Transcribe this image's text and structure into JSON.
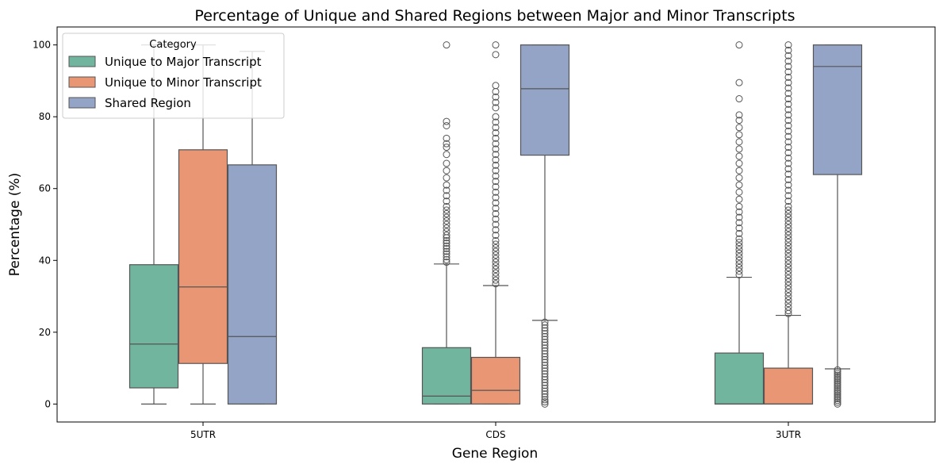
{
  "chart_data": {
    "type": "box",
    "title": "Percentage of Unique and Shared Regions between Major and Minor Transcripts",
    "xlabel": "Gene Region",
    "ylabel": "Percentage (%)",
    "ylim": [
      -5,
      105
    ],
    "yticks": [
      0,
      20,
      40,
      60,
      80,
      100
    ],
    "grid": false,
    "legend": {
      "title": "Category",
      "placement": "top-left"
    },
    "categories": [
      "5UTR",
      "CDS",
      "3UTR"
    ],
    "series": [
      {
        "name": "Unique to Major Transcript",
        "color": "#72b59f",
        "boxes": [
          {
            "category": "5UTR",
            "whislo": 0,
            "q1": 4.5,
            "median": 16.7,
            "q3": 38.8,
            "whishi": 100,
            "fliers_low": [],
            "fliers_high": []
          },
          {
            "category": "CDS",
            "whislo": 0,
            "q1": 0,
            "median": 2.2,
            "q3": 15.7,
            "whishi": 39.0,
            "fliers_low": [],
            "fliers_high": [
              39.5,
              40.2,
              41.0,
              41.8,
              42.5,
              43.3,
              44.0,
              44.8,
              45.5,
              46.3,
              47.0,
              48.0,
              49.0,
              50.0,
              51.0,
              52.0,
              53.0,
              54.0,
              55.0,
              56.5,
              58.0,
              59.5,
              61.0,
              63.0,
              65.0,
              67.0,
              69.5,
              71.5,
              72.5,
              74.0,
              77.5,
              78.7,
              100
            ]
          },
          {
            "category": "3UTR",
            "whislo": 0,
            "q1": 0,
            "median": 0,
            "q3": 14.2,
            "whishi": 35.3,
            "fliers_low": [],
            "fliers_high": [
              36.0,
              37.0,
              38.0,
              39.0,
              40.0,
              41.0,
              42.0,
              43.0,
              44.0,
              45.0,
              46.0,
              47.5,
              49.0,
              50.5,
              52.0,
              53.5,
              55.0,
              57.0,
              59.0,
              61.0,
              63.0,
              65.0,
              67.0,
              69.0,
              71.0,
              73.0,
              75.0,
              77.0,
              79.0,
              80.5,
              85.0,
              89.5,
              100
            ]
          }
        ]
      },
      {
        "name": "Unique to Minor Transcript",
        "color": "#e99674",
        "boxes": [
          {
            "category": "5UTR",
            "whislo": 0,
            "q1": 11.3,
            "median": 32.6,
            "q3": 70.8,
            "whishi": 100,
            "fliers_low": [],
            "fliers_high": []
          },
          {
            "category": "CDS",
            "whislo": 0,
            "q1": 0,
            "median": 3.8,
            "q3": 13.0,
            "whishi": 33.0,
            "fliers_low": [],
            "fliers_high": [
              33.5,
              34.5,
              35.5,
              36.5,
              37.5,
              38.5,
              39.5,
              40.5,
              41.5,
              42.5,
              43.5,
              44.5,
              45.5,
              47.0,
              48.5,
              50.0,
              51.5,
              53.0,
              54.5,
              56.0,
              57.5,
              59.0,
              60.5,
              62.0,
              63.5,
              65.0,
              66.5,
              68.0,
              69.5,
              71.0,
              72.5,
              74.0,
              75.5,
              77.0,
              78.5,
              80.0,
              82.5,
              84.0,
              85.5,
              87.0,
              88.7,
              97.3,
              100
            ]
          },
          {
            "category": "3UTR",
            "whislo": 0,
            "q1": 0,
            "median": 0,
            "q3": 10.0,
            "whishi": 24.7,
            "fliers_low": [],
            "fliers_high": [
              25.2,
              26.0,
              27.0,
              28.0,
              29.0,
              30.0,
              31.0,
              32.0,
              33.0,
              34.0,
              35.0,
              36.0,
              37.0,
              38.0,
              39.0,
              40.0,
              41.0,
              42.0,
              43.0,
              44.0,
              45.0,
              46.0,
              47.0,
              48.0,
              49.0,
              50.0,
              51.0,
              52.0,
              53.0,
              54.0,
              55.0,
              56.5,
              58.0,
              59.5,
              61.0,
              62.5,
              64.0,
              65.5,
              67.0,
              68.5,
              70.0,
              71.5,
              73.0,
              74.5,
              76.0,
              77.5,
              79.0,
              80.5,
              82.0,
              83.5,
              85.0,
              86.5,
              88.0,
              89.5,
              91.0,
              92.5,
              94.0,
              95.5,
              97.0,
              98.5,
              100
            ]
          }
        ]
      },
      {
        "name": "Shared Region",
        "color": "#93a4c6",
        "boxes": [
          {
            "category": "5UTR",
            "whislo": 0,
            "q1": 0,
            "median": 18.8,
            "q3": 66.6,
            "whishi": 98.2,
            "fliers_low": [],
            "fliers_high": []
          },
          {
            "category": "CDS",
            "whislo": 23.3,
            "q1": 69.3,
            "median": 87.8,
            "q3": 100,
            "whishi": 100,
            "fliers_low": [
              0,
              0.6,
              1.2,
              2.0,
              2.8,
              3.6,
              4.4,
              5.2,
              6.0,
              6.8,
              7.6,
              8.4,
              9.2,
              10.0,
              10.8,
              11.6,
              12.4,
              13.2,
              14.0,
              14.8,
              15.6,
              16.4,
              17.2,
              18.0,
              18.8,
              19.6,
              20.4,
              21.2,
              22.0,
              22.8
            ],
            "fliers_high": []
          },
          {
            "category": "3UTR",
            "whislo": 9.8,
            "q1": 63.9,
            "median": 94.0,
            "q3": 100,
            "whishi": 100,
            "fliers_low": [
              0,
              0.5,
              1.0,
              1.5,
              2.0,
              2.5,
              3.0,
              3.5,
              4.0,
              4.5,
              5.0,
              5.5,
              6.0,
              6.5,
              7.0,
              7.5,
              8.0,
              8.5,
              9.0,
              9.5
            ],
            "fliers_high": []
          }
        ]
      }
    ]
  }
}
